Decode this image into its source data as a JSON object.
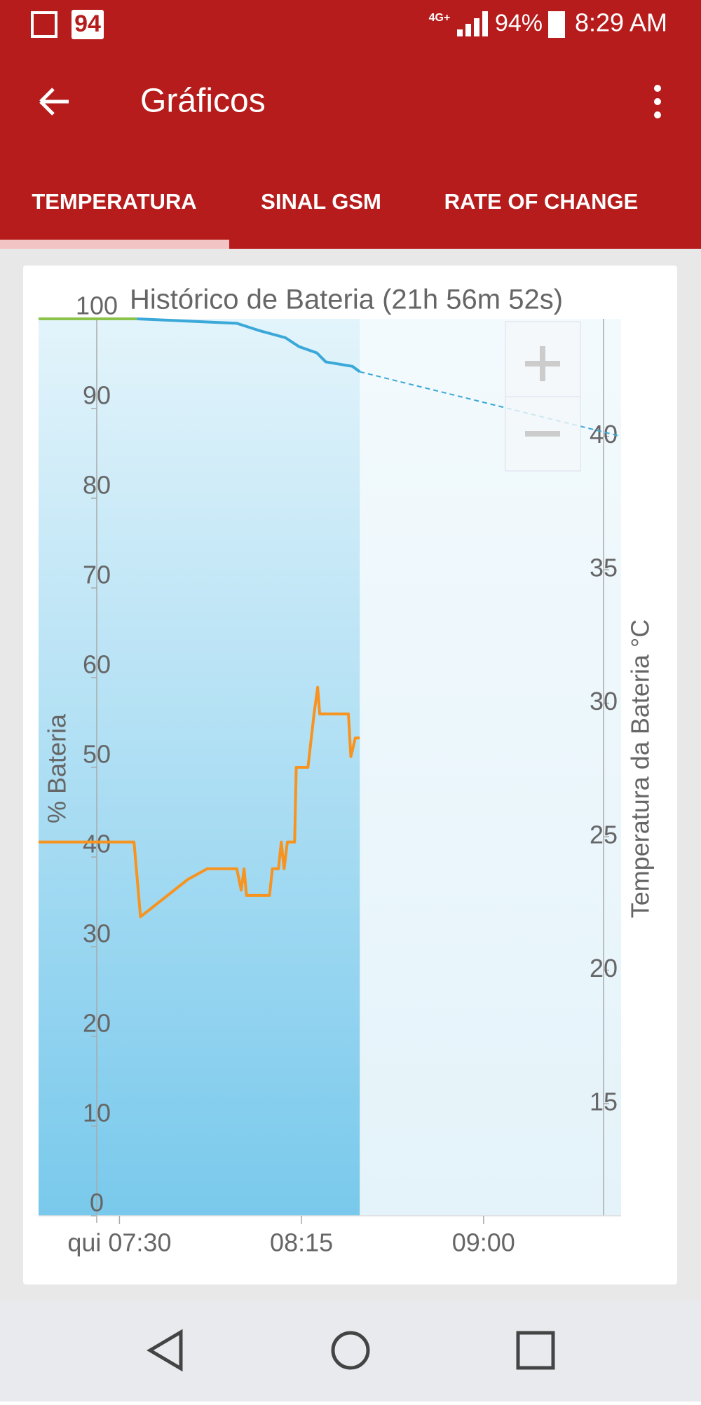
{
  "status_bar": {
    "notification": "94",
    "network": "4G+",
    "battery": "94%",
    "time": "8:29 AM"
  },
  "app_bar": {
    "title": "Gráficos"
  },
  "tabs": [
    "TEMPERATURA",
    "SINAL GSM",
    "RATE OF CHANGE"
  ],
  "chart_data": {
    "type": "line",
    "title": "Histórico de Bateria (21h 56m 52s)",
    "y_label": "% Bateria",
    "y2_label": "Temperatura da Bateria °C",
    "xlim": [
      430,
      574
    ],
    "xticks": [
      {
        "value": 450,
        "label": "qui 07:30"
      },
      {
        "value": 495,
        "label": "08:15"
      },
      {
        "value": 540,
        "label": "09:00"
      }
    ],
    "ylim": [
      0,
      100
    ],
    "yticks": [
      0,
      10,
      20,
      30,
      40,
      50,
      60,
      70,
      80,
      90,
      100
    ],
    "y2lim": [
      10.8,
      44.4
    ],
    "y2ticks": [
      15,
      20,
      25,
      30,
      35,
      40
    ],
    "series": [
      {
        "color": "#8bc34a",
        "x": [
          430,
          454.3
        ],
        "values": [
          100,
          100
        ]
      },
      {
        "color": "#3aa8d8",
        "x": [
          454.3,
          479,
          484.5,
          491,
          494.4,
          498.8,
          501,
          507.6,
          509.4
        ],
        "values": [
          100,
          99.5,
          98.7,
          97.9,
          96.9,
          96.2,
          95.2,
          94.7,
          94.1
        ]
      },
      {
        "color": "#3aa8d8",
        "dashed": true,
        "x": [
          509.4,
          574
        ],
        "values": [
          94.1,
          86.9
        ]
      },
      {
        "color": "#f7931e",
        "axis": "y2",
        "x": [
          430,
          453.6,
          455.2,
          466.9,
          471.7,
          479,
          480.1,
          480.8,
          481.4,
          487.1,
          487.8,
          489.3,
          490,
          490.7,
          491.5,
          493.3,
          493.7,
          496.6,
          498.1,
          499,
          499.5,
          506.6,
          507.2,
          508.3,
          509.4
        ],
        "values": [
          24.8,
          24.8,
          22.0,
          23.4,
          23.8,
          23.8,
          23.0,
          23.8,
          22.8,
          22.8,
          23.8,
          23.8,
          24.8,
          23.8,
          24.8,
          24.8,
          27.6,
          27.6,
          29.6,
          30.6,
          29.6,
          29.6,
          28.0,
          28.7,
          28.7
        ]
      }
    ]
  }
}
